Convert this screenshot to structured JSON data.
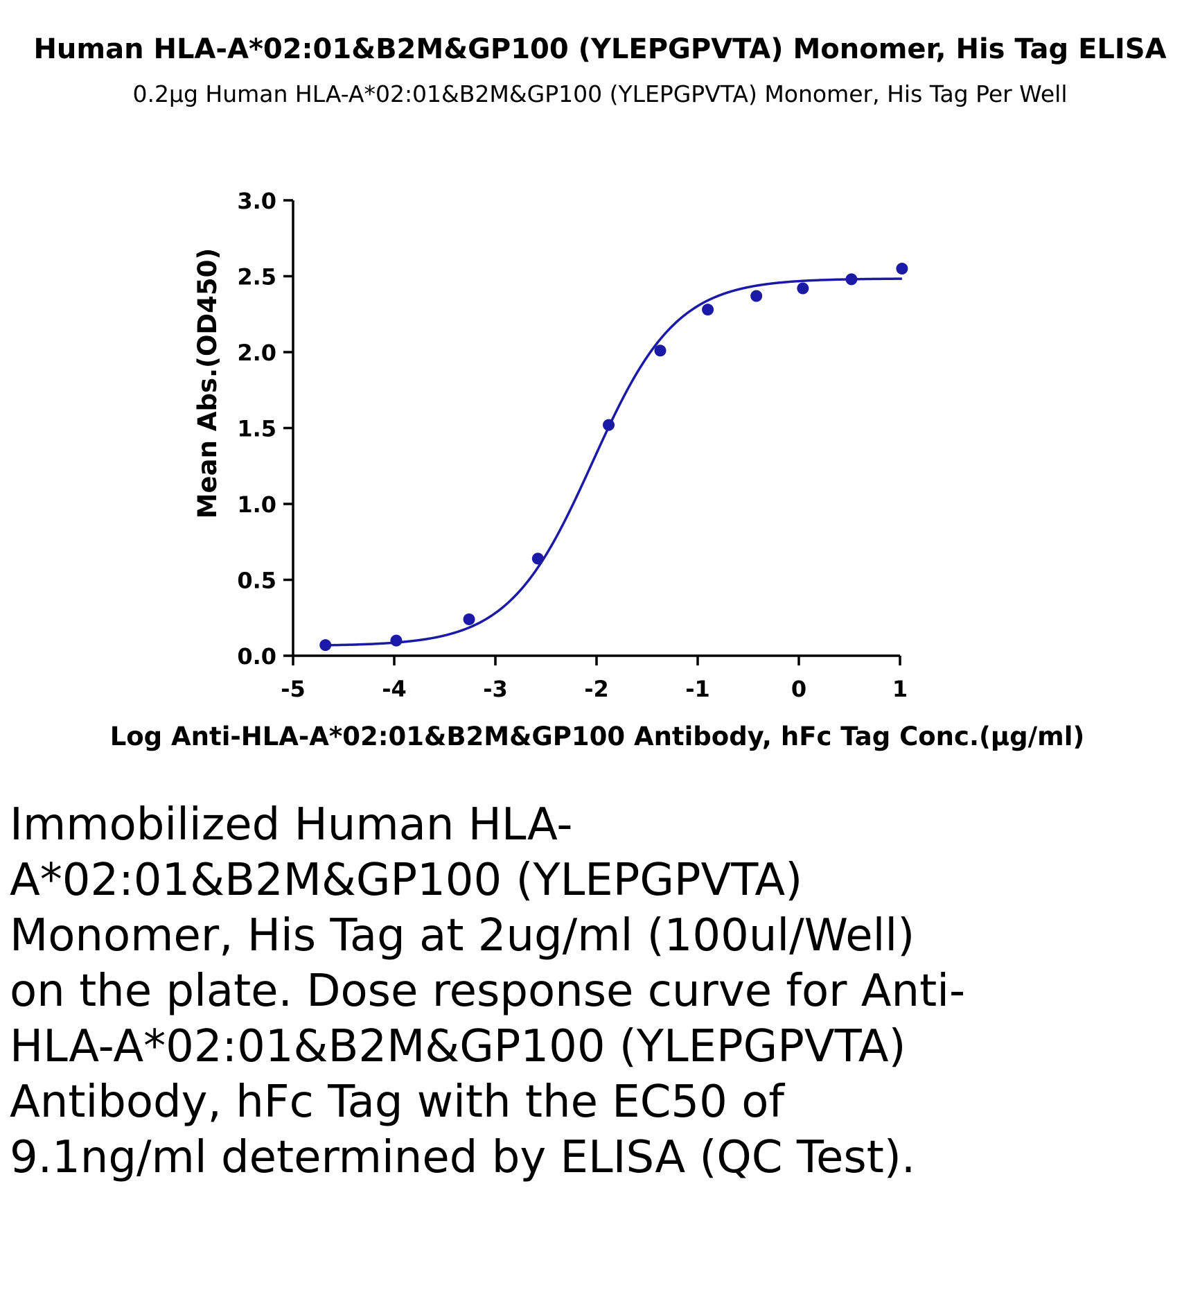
{
  "title": "Human HLA-A*02:01&B2M&GP100 (YLEPGPVTA) Monomer, His Tag ELISA",
  "subtitle": "0.2μg Human HLA-A*02:01&B2M&GP100 (YLEPGPVTA) Monomer, His Tag Per Well",
  "caption": "Immobilized Human HLA-A*02:01&B2M&GP100 (YLEPGPVTA) Monomer, His Tag at 2ug/ml (100ul/Well) on the plate. Dose response curve for Anti-HLA-A*02:01&B2M&GP100 (YLEPGPVTA) Antibody, hFc Tag with the EC50 of 9.1ng/ml determined by ELISA (QC Test).",
  "colors": {
    "series": "#1a1aa6",
    "axis": "#000000"
  },
  "chart_data": {
    "type": "scatter",
    "xlabel": "Log Anti-HLA-A*02:01&B2M&GP100 Antibody, hFc Tag Conc.(μg/ml)",
    "ylabel": "Mean Abs.(OD450)",
    "xlim": [
      -5,
      1
    ],
    "ylim": [
      0,
      3
    ],
    "x_ticks": [
      "-5",
      "-4",
      "-3",
      "-2",
      "-1",
      "0",
      "1"
    ],
    "y_ticks": [
      "0.0",
      "0.5",
      "1.0",
      "1.5",
      "2.0",
      "2.5",
      "3.0"
    ],
    "grid": false,
    "legend": false,
    "points": [
      {
        "x": -4.68,
        "y": 0.07
      },
      {
        "x": -3.98,
        "y": 0.1
      },
      {
        "x": -3.26,
        "y": 0.24
      },
      {
        "x": -2.58,
        "y": 0.64
      },
      {
        "x": -1.88,
        "y": 1.52
      },
      {
        "x": -1.37,
        "y": 2.01
      },
      {
        "x": -0.9,
        "y": 2.28
      },
      {
        "x": -0.42,
        "y": 2.37
      },
      {
        "x": 0.04,
        "y": 2.42
      },
      {
        "x": 0.52,
        "y": 2.48
      },
      {
        "x": 1.02,
        "y": 2.55
      }
    ],
    "fit": {
      "model": "4PL",
      "bottom": 0.065,
      "top": 2.485,
      "logEC50": -2.04,
      "hill": 1.05,
      "x_range": [
        -4.68,
        1.02
      ]
    }
  }
}
